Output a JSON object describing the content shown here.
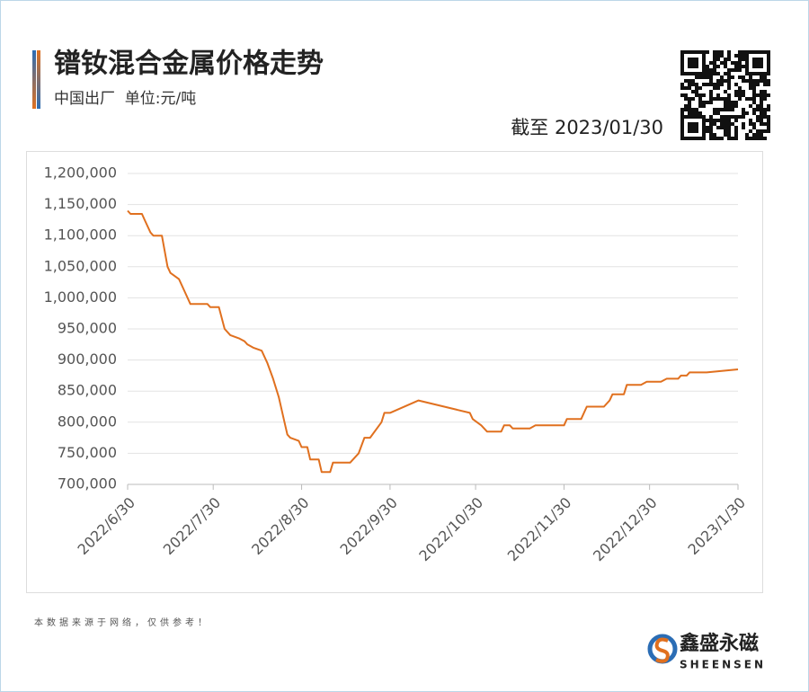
{
  "chart_data": {
    "type": "line",
    "title": "镨钕混合金属价格走势",
    "subtitle": "中国出厂  单位:元/吨",
    "date_note": "截至 2023/01/30",
    "source_note": "本数据来源于网络，仅供参考！",
    "brand": "鑫盛永磁",
    "brand_en": "SHEENSEN",
    "color": "#e0701f",
    "grid": true,
    "x": [
      "2022-06-30",
      "2022-07-01",
      "2022-07-05",
      "2022-07-06",
      "2022-07-08",
      "2022-07-09",
      "2022-07-12",
      "2022-07-14",
      "2022-07-15",
      "2022-07-18",
      "2022-07-20",
      "2022-07-22",
      "2022-07-28",
      "2022-07-29",
      "2022-08-01",
      "2022-08-03",
      "2022-08-05",
      "2022-08-08",
      "2022-08-10",
      "2022-08-11",
      "2022-08-13",
      "2022-08-16",
      "2022-08-18",
      "2022-08-20",
      "2022-08-22",
      "2022-08-24",
      "2022-08-25",
      "2022-08-26",
      "2022-08-29",
      "2022-08-30",
      "2022-09-01",
      "2022-09-02",
      "2022-09-05",
      "2022-09-06",
      "2022-09-09",
      "2022-09-10",
      "2022-09-16",
      "2022-09-19",
      "2022-09-21",
      "2022-09-23",
      "2022-09-27",
      "2022-09-28",
      "2022-09-30",
      "2022-10-10",
      "2022-10-28",
      "2022-10-29",
      "2022-11-01",
      "2022-11-03",
      "2022-11-08",
      "2022-11-09",
      "2022-11-11",
      "2022-11-12",
      "2022-11-18",
      "2022-11-20",
      "2022-11-30",
      "2022-12-01",
      "2022-12-06",
      "2022-12-08",
      "2022-12-14",
      "2022-12-16",
      "2022-12-17",
      "2022-12-21",
      "2022-12-22",
      "2022-12-27",
      "2022-12-29",
      "2023-01-03",
      "2023-01-05",
      "2023-01-09",
      "2023-01-10",
      "2023-01-12",
      "2023-01-13",
      "2023-01-19",
      "2023-01-30"
    ],
    "values": [
      1140000,
      1135000,
      1135000,
      1125000,
      1105000,
      1100000,
      1100000,
      1050000,
      1040000,
      1030000,
      1010000,
      990000,
      990000,
      985000,
      985000,
      950000,
      940000,
      935000,
      930000,
      925000,
      920000,
      915000,
      895000,
      870000,
      840000,
      800000,
      780000,
      775000,
      770000,
      760000,
      760000,
      740000,
      740000,
      720000,
      720000,
      735000,
      735000,
      750000,
      775000,
      775000,
      800000,
      815000,
      815000,
      835000,
      815000,
      805000,
      795000,
      785000,
      785000,
      795000,
      795000,
      790000,
      790000,
      795000,
      795000,
      805000,
      805000,
      825000,
      825000,
      835000,
      845000,
      845000,
      860000,
      860000,
      865000,
      865000,
      870000,
      870000,
      875000,
      875000,
      880000,
      880000,
      885000
    ],
    "xlim": [
      "2022-06-30",
      "2023-01-30"
    ],
    "xticks": [
      {
        "value": "2022-06-30",
        "label": "2022/6/30"
      },
      {
        "value": "2022-07-30",
        "label": "2022/7/30"
      },
      {
        "value": "2022-08-30",
        "label": "2022/8/30"
      },
      {
        "value": "2022-09-30",
        "label": "2022/9/30"
      },
      {
        "value": "2022-10-30",
        "label": "2022/10/30"
      },
      {
        "value": "2022-11-30",
        "label": "2022/11/30"
      },
      {
        "value": "2022-12-30",
        "label": "2022/12/30"
      },
      {
        "value": "2023-01-30",
        "label": "2023/1/30"
      }
    ],
    "ylim": [
      700000,
      1200000
    ],
    "yticks": [
      {
        "value": 700000,
        "label": "700,000"
      },
      {
        "value": 750000,
        "label": "750,000"
      },
      {
        "value": 800000,
        "label": "800,000"
      },
      {
        "value": 850000,
        "label": "850,000"
      },
      {
        "value": 900000,
        "label": "900,000"
      },
      {
        "value": 950000,
        "label": "950,000"
      },
      {
        "value": 1000000,
        "label": "1,000,000"
      },
      {
        "value": 1050000,
        "label": "1,050,000"
      },
      {
        "value": 1100000,
        "label": "1,100,000"
      },
      {
        "value": 1150000,
        "label": "1,150,000"
      },
      {
        "value": 1200000,
        "label": "1,200,000"
      }
    ]
  }
}
